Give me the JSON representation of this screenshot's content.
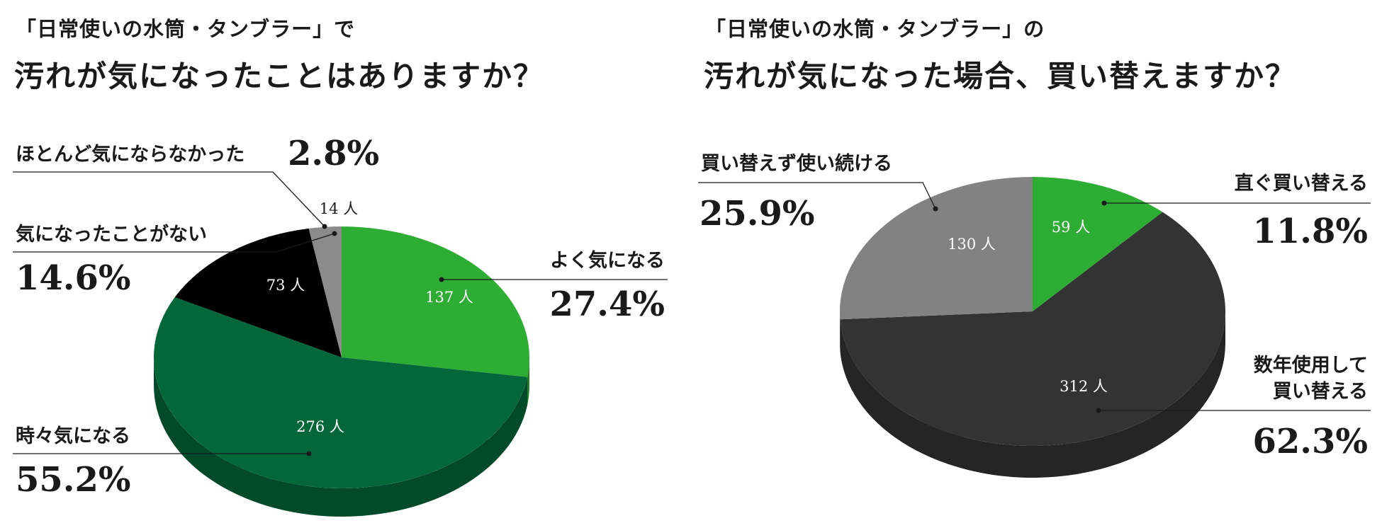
{
  "chart_data": [
    {
      "type": "pie",
      "title_sub": "「日常使いの水筒・タンブラー」で",
      "title": "汚れが気になったことはありますか？",
      "unit": "人",
      "slices": [
        {
          "label": "よく気になる",
          "percent": "27.4%",
          "count": 137,
          "color": "#2ead35"
        },
        {
          "label": "時々気になる",
          "percent": "55.2%",
          "count": 276,
          "color": "#03673a"
        },
        {
          "label": "気になったことがない",
          "percent": "14.6%",
          "count": 73,
          "color": "#000000"
        },
        {
          "label": "ほとんど気にならなかった",
          "percent": "2.8%",
          "count": 14,
          "color": "#8b8b8b"
        }
      ]
    },
    {
      "type": "pie",
      "title_sub": "「日常使いの水筒・タンブラー」の",
      "title": "汚れが気になった場合、買い替えますか？",
      "unit": "人",
      "slices": [
        {
          "label": "直ぐ買い替える",
          "percent": "11.8%",
          "count": 59,
          "color": "#2ead35"
        },
        {
          "label": "数年使用して買い替える",
          "label_lines": [
            "数年使用して",
            "買い替える"
          ],
          "percent": "62.3%",
          "count": 312,
          "color": "#333333"
        },
        {
          "label": "買い替えず使い続ける",
          "percent": "25.9%",
          "count": 130,
          "color": "#828282"
        }
      ]
    }
  ]
}
